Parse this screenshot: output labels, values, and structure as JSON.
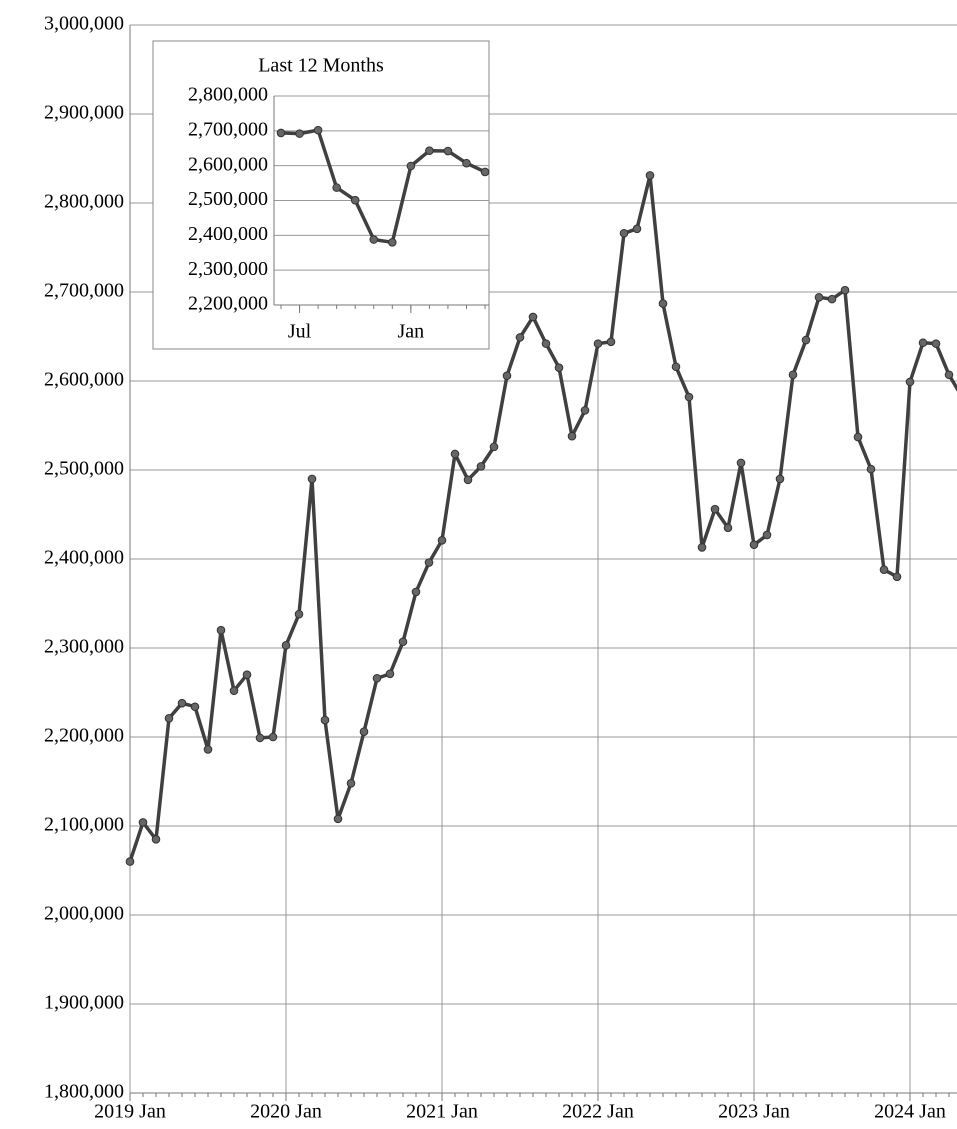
{
  "chart_data": [
    {
      "type": "line",
      "x": [
        "2019-01",
        "2019-02",
        "2019-03",
        "2019-04",
        "2019-05",
        "2019-06",
        "2019-07",
        "2019-08",
        "2019-09",
        "2019-10",
        "2019-11",
        "2019-12",
        "2020-01",
        "2020-02",
        "2020-03",
        "2020-04",
        "2020-05",
        "2020-06",
        "2020-07",
        "2020-08",
        "2020-09",
        "2020-10",
        "2020-11",
        "2020-12",
        "2021-01",
        "2021-02",
        "2021-03",
        "2021-04",
        "2021-05",
        "2021-06",
        "2021-07",
        "2021-08",
        "2021-09",
        "2021-10",
        "2021-11",
        "2021-12",
        "2022-01",
        "2022-02",
        "2022-03",
        "2022-04",
        "2022-05",
        "2022-06",
        "2022-07",
        "2022-08",
        "2022-09",
        "2022-10",
        "2022-11",
        "2022-12",
        "2023-01",
        "2023-02",
        "2023-03",
        "2023-04",
        "2023-05",
        "2023-06",
        "2023-07",
        "2023-08",
        "2023-09",
        "2023-10",
        "2023-11",
        "2023-12",
        "2024-01",
        "2024-02",
        "2024-03",
        "2024-04",
        "2024-05"
      ],
      "series": [
        {
          "color": "#404040",
          "values": [
            2060000,
            2104000,
            2085000,
            2221000,
            2238000,
            2234000,
            2186000,
            2320000,
            2252000,
            2270000,
            2199000,
            2200000,
            2303000,
            2338000,
            2490000,
            2219000,
            2108000,
            2148000,
            2206000,
            2266000,
            2271000,
            2307000,
            2363000,
            2396000,
            2421000,
            2518000,
            2489000,
            2504000,
            2526000,
            2606000,
            2649000,
            2672000,
            2642000,
            2615000,
            2538000,
            2567000,
            2642000,
            2644000,
            2766000,
            2771000,
            2831000,
            2687000,
            2616000,
            2582000,
            2413000,
            2456000,
            2435000,
            2508000,
            2416000,
            2427000,
            2490000,
            2607000,
            2646000,
            2694000,
            2692000,
            2702000,
            2537000,
            2501000,
            2388000,
            2380000,
            2599000,
            2643000,
            2642000,
            2607000,
            2582000
          ]
        }
      ],
      "ylim": [
        1800000,
        3000000
      ],
      "yticks": [
        {
          "value": 1800000,
          "label": "1,800,000"
        },
        {
          "value": 1900000,
          "label": "1,900,000"
        },
        {
          "value": 2000000,
          "label": "2,000,000"
        },
        {
          "value": 2100000,
          "label": "2,100,000"
        },
        {
          "value": 2200000,
          "label": "2,200,000"
        },
        {
          "value": 2300000,
          "label": "2,300,000"
        },
        {
          "value": 2400000,
          "label": "2,400,000"
        },
        {
          "value": 2500000,
          "label": "2,500,000"
        },
        {
          "value": 2600000,
          "label": "2,600,000"
        },
        {
          "value": 2700000,
          "label": "2,700,000"
        },
        {
          "value": 2800000,
          "label": "2,800,000"
        },
        {
          "value": 2900000,
          "label": "2,900,000"
        },
        {
          "value": 3000000,
          "label": "3,000,000"
        }
      ],
      "xticks": [
        {
          "value": "2019-01",
          "label": "2019 Jan"
        },
        {
          "value": "2020-01",
          "label": "2020 Jan"
        },
        {
          "value": "2021-01",
          "label": "2021 Jan"
        },
        {
          "value": "2022-01",
          "label": "2022 Jan"
        },
        {
          "value": "2023-01",
          "label": "2023 Jan"
        },
        {
          "value": "2024-01",
          "label": "2024 Jan"
        }
      ],
      "grid": true
    },
    {
      "type": "line",
      "title": "Last 12 Months",
      "x": [
        "2023-06",
        "2023-07",
        "2023-08",
        "2023-09",
        "2023-10",
        "2023-11",
        "2023-12",
        "2024-01",
        "2024-02",
        "2024-03",
        "2024-04",
        "2024-05"
      ],
      "series": [
        {
          "color": "#404040",
          "values": [
            2694000,
            2692000,
            2702000,
            2537000,
            2501000,
            2388000,
            2380000,
            2599000,
            2643000,
            2642000,
            2607000,
            2582000
          ]
        }
      ],
      "ylim": [
        2200000,
        2800000
      ],
      "yticks": [
        {
          "value": 2200000,
          "label": "2,200,000"
        },
        {
          "value": 2300000,
          "label": "2,300,000"
        },
        {
          "value": 2400000,
          "label": "2,400,000"
        },
        {
          "value": 2500000,
          "label": "2,500,000"
        },
        {
          "value": 2600000,
          "label": "2,600,000"
        },
        {
          "value": 2700000,
          "label": "2,700,000"
        },
        {
          "value": 2800000,
          "label": "2,800,000"
        }
      ],
      "xticks": [
        {
          "value": "2023-07",
          "label": "Jul"
        },
        {
          "value": "2024-01",
          "label": "Jan"
        }
      ],
      "grid": true
    }
  ]
}
